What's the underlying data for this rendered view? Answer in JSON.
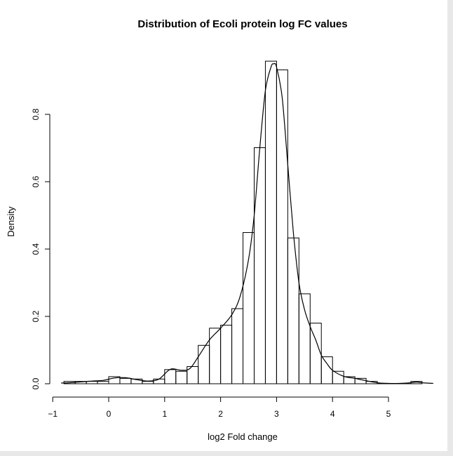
{
  "chart_data": {
    "type": "bar",
    "subtype": "histogram-with-density-curve",
    "title": "Distribution of Ecoli protein log FC values",
    "xlabel": "log2 Fold change",
    "ylabel": "Density",
    "xlim": [
      -0.8,
      5.8
    ],
    "ylim": [
      0,
      0.96
    ],
    "x_ticks": [
      -1,
      0,
      1,
      2,
      3,
      4,
      5
    ],
    "x_tick_labels": [
      "−1",
      "0",
      "1",
      "2",
      "3",
      "4",
      "5"
    ],
    "y_ticks": [
      0.0,
      0.2,
      0.4,
      0.6,
      0.8
    ],
    "y_tick_labels": [
      "0.0",
      "0.2",
      "0.4",
      "0.6",
      "0.8"
    ],
    "grid": false,
    "legend": "none",
    "bins": [
      {
        "x0": -0.8,
        "x1": -0.6,
        "density": 0.007
      },
      {
        "x0": -0.6,
        "x1": -0.4,
        "density": 0.007
      },
      {
        "x0": -0.4,
        "x1": -0.2,
        "density": 0.007
      },
      {
        "x0": -0.2,
        "x1": 0.0,
        "density": 0.007
      },
      {
        "x0": 0.0,
        "x1": 0.2,
        "density": 0.021
      },
      {
        "x0": 0.2,
        "x1": 0.4,
        "density": 0.016
      },
      {
        "x0": 0.4,
        "x1": 0.6,
        "density": 0.014
      },
      {
        "x0": 0.6,
        "x1": 0.8,
        "density": 0.007
      },
      {
        "x0": 0.8,
        "x1": 1.0,
        "density": 0.014
      },
      {
        "x0": 1.0,
        "x1": 1.2,
        "density": 0.042
      },
      {
        "x0": 1.2,
        "x1": 1.4,
        "density": 0.037
      },
      {
        "x0": 1.4,
        "x1": 1.6,
        "density": 0.051
      },
      {
        "x0": 1.6,
        "x1": 1.8,
        "density": 0.114
      },
      {
        "x0": 1.8,
        "x1": 2.0,
        "density": 0.165
      },
      {
        "x0": 2.0,
        "x1": 2.2,
        "density": 0.174
      },
      {
        "x0": 2.2,
        "x1": 2.4,
        "density": 0.223
      },
      {
        "x0": 2.4,
        "x1": 2.6,
        "density": 0.449
      },
      {
        "x0": 2.6,
        "x1": 2.8,
        "density": 0.701
      },
      {
        "x0": 2.8,
        "x1": 3.0,
        "density": 0.958
      },
      {
        "x0": 3.0,
        "x1": 3.2,
        "density": 0.932
      },
      {
        "x0": 3.2,
        "x1": 3.4,
        "density": 0.433
      },
      {
        "x0": 3.4,
        "x1": 3.6,
        "density": 0.267
      },
      {
        "x0": 3.6,
        "x1": 3.8,
        "density": 0.18
      },
      {
        "x0": 3.8,
        "x1": 4.0,
        "density": 0.08
      },
      {
        "x0": 4.0,
        "x1": 4.2,
        "density": 0.037
      },
      {
        "x0": 4.2,
        "x1": 4.4,
        "density": 0.021
      },
      {
        "x0": 4.4,
        "x1": 4.6,
        "density": 0.016
      },
      {
        "x0": 4.6,
        "x1": 4.8,
        "density": 0.007
      },
      {
        "x0": 4.8,
        "x1": 5.0,
        "density": 0.0
      },
      {
        "x0": 5.0,
        "x1": 5.2,
        "density": 0.0
      },
      {
        "x0": 5.2,
        "x1": 5.4,
        "density": 0.0
      },
      {
        "x0": 5.4,
        "x1": 5.6,
        "density": 0.007
      }
    ],
    "density_curve": {
      "x": [
        -0.85,
        -0.6,
        -0.3,
        -0.1,
        0.1,
        0.3,
        0.5,
        0.7,
        0.9,
        1.1,
        1.3,
        1.45,
        1.6,
        1.8,
        2.0,
        2.2,
        2.35,
        2.5,
        2.6,
        2.7,
        2.8,
        2.9,
        2.95,
        3.0,
        3.1,
        3.2,
        3.3,
        3.4,
        3.5,
        3.6,
        3.7,
        3.8,
        3.9,
        4.0,
        4.2,
        4.4,
        4.6,
        4.8,
        5.0,
        5.2,
        5.4,
        5.5,
        5.6,
        5.8
      ],
      "y": [
        0.002,
        0.004,
        0.008,
        0.01,
        0.017,
        0.018,
        0.012,
        0.008,
        0.014,
        0.043,
        0.04,
        0.045,
        0.08,
        0.13,
        0.165,
        0.205,
        0.26,
        0.37,
        0.5,
        0.7,
        0.87,
        0.94,
        0.95,
        0.94,
        0.85,
        0.65,
        0.45,
        0.3,
        0.22,
        0.17,
        0.13,
        0.085,
        0.06,
        0.04,
        0.022,
        0.016,
        0.009,
        0.003,
        0.001,
        0.001,
        0.003,
        0.005,
        0.003,
        0.001
      ]
    }
  }
}
